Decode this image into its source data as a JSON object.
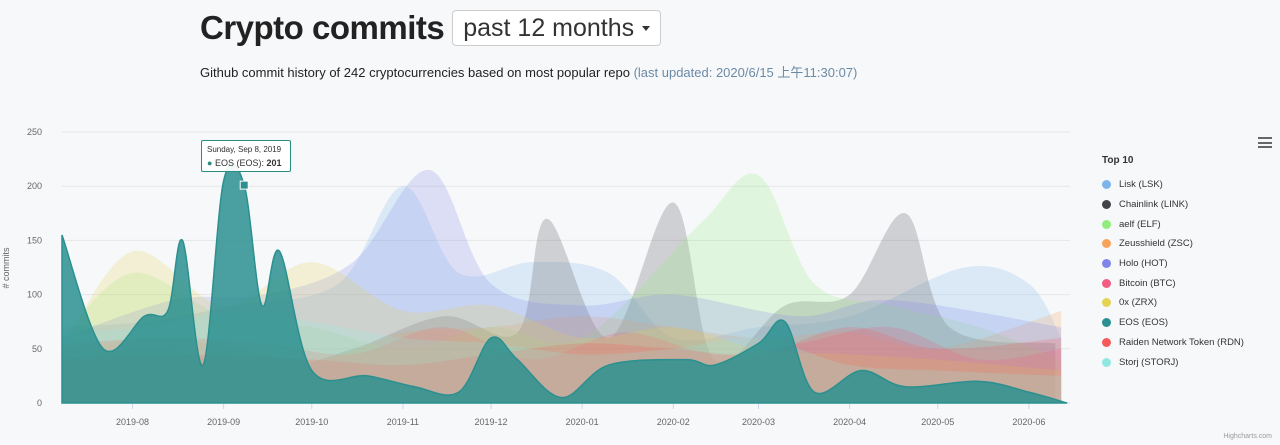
{
  "header": {
    "title": "Crypto commits",
    "range_label": "past 12 months",
    "subtitle_main": "Github commit history of 242 cryptocurrencies based on most popular repo",
    "subtitle_updated": "(last updated: 2020/6/15 上午11:30:07)"
  },
  "tooltip": {
    "date": "Sunday, Sep 8, 2019",
    "series": "EOS (EOS): ",
    "value": "201"
  },
  "credits": "Highcharts.com",
  "chart_data": {
    "type": "area",
    "title": "",
    "ylabel": "# commits",
    "xlabel": "",
    "ylim": [
      0,
      250
    ],
    "yticks": [
      0,
      50,
      100,
      150,
      200,
      250
    ],
    "xlim": [
      "2019-07-08",
      "2020-06-15"
    ],
    "x_ticks": [
      "2019-08",
      "2019-09",
      "2019-10",
      "2019-11",
      "2019-12",
      "2020-01",
      "2020-02",
      "2020-03",
      "2020-04",
      "2020-05",
      "2020-06"
    ],
    "grid": true,
    "legend_title": "Top 10",
    "legend_position": "right",
    "series": [
      {
        "name": "Lisk (LSK)",
        "color": "#7cb5ec",
        "points": [
          [
            "2019-07-08",
            70
          ],
          [
            "2019-08-05",
            75
          ],
          [
            "2019-09-05",
            90
          ],
          [
            "2019-10-10",
            110
          ],
          [
            "2019-11-01",
            200
          ],
          [
            "2019-11-20",
            120
          ],
          [
            "2019-12-15",
            130
          ],
          [
            "2020-01-10",
            120
          ],
          [
            "2020-02-01",
            60
          ],
          [
            "2020-03-01",
            70
          ],
          [
            "2020-04-01",
            80
          ],
          [
            "2020-05-10",
            125
          ],
          [
            "2020-06-01",
            110
          ],
          [
            "2020-06-12",
            60
          ]
        ]
      },
      {
        "name": "Chainlink (LINK)",
        "color": "#434348",
        "points": [
          [
            "2019-07-08",
            40
          ],
          [
            "2019-08-10",
            50
          ],
          [
            "2019-09-15",
            30
          ],
          [
            "2019-10-15",
            50
          ],
          [
            "2019-11-15",
            80
          ],
          [
            "2019-12-10",
            65
          ],
          [
            "2019-12-20",
            170
          ],
          [
            "2020-01-10",
            60
          ],
          [
            "2020-02-01",
            185
          ],
          [
            "2020-02-15",
            40
          ],
          [
            "2020-03-10",
            90
          ],
          [
            "2020-04-01",
            100
          ],
          [
            "2020-04-20",
            175
          ],
          [
            "2020-05-05",
            70
          ],
          [
            "2020-06-10",
            55
          ]
        ]
      },
      {
        "name": "aelf (ELF)",
        "color": "#90ed7d",
        "points": [
          [
            "2019-07-08",
            60
          ],
          [
            "2019-08-01",
            120
          ],
          [
            "2019-09-01",
            80
          ],
          [
            "2019-10-01",
            70
          ],
          [
            "2019-11-01",
            50
          ],
          [
            "2019-12-01",
            70
          ],
          [
            "2020-01-01",
            60
          ],
          [
            "2020-02-10",
            165
          ],
          [
            "2020-03-01",
            210
          ],
          [
            "2020-03-20",
            110
          ],
          [
            "2020-04-15",
            90
          ],
          [
            "2020-05-15",
            70
          ],
          [
            "2020-06-12",
            40
          ]
        ]
      },
      {
        "name": "Zeusshield (ZSC)",
        "color": "#f7a35c",
        "points": [
          [
            "2019-07-08",
            50
          ],
          [
            "2019-08-15",
            60
          ],
          [
            "2019-10-01",
            40
          ],
          [
            "2019-11-01",
            65
          ],
          [
            "2019-12-01",
            70
          ],
          [
            "2020-01-01",
            80
          ],
          [
            "2020-02-01",
            70
          ],
          [
            "2020-03-01",
            60
          ],
          [
            "2020-04-01",
            65
          ],
          [
            "2020-05-01",
            50
          ],
          [
            "2020-06-12",
            85
          ]
        ]
      },
      {
        "name": "Holo (HOT)",
        "color": "#8085e9",
        "points": [
          [
            "2019-07-08",
            60
          ],
          [
            "2019-08-15",
            95
          ],
          [
            "2019-09-15",
            100
          ],
          [
            "2019-10-15",
            130
          ],
          [
            "2019-11-10",
            215
          ],
          [
            "2019-12-01",
            110
          ],
          [
            "2020-01-01",
            90
          ],
          [
            "2020-02-01",
            100
          ],
          [
            "2020-03-15",
            80
          ],
          [
            "2020-04-15",
            95
          ],
          [
            "2020-06-12",
            70
          ]
        ]
      },
      {
        "name": "Bitcoin (BTC)",
        "color": "#f15c80",
        "points": [
          [
            "2019-07-08",
            55
          ],
          [
            "2019-08-15",
            60
          ],
          [
            "2019-09-15",
            55
          ],
          [
            "2019-10-15",
            45
          ],
          [
            "2019-11-15",
            70
          ],
          [
            "2019-12-15",
            40
          ],
          [
            "2020-01-15",
            65
          ],
          [
            "2020-02-15",
            45
          ],
          [
            "2020-03-15",
            55
          ],
          [
            "2020-04-15",
            70
          ],
          [
            "2020-05-15",
            40
          ],
          [
            "2020-06-12",
            50
          ]
        ]
      },
      {
        "name": "0x (ZRX)",
        "color": "#e4d354",
        "points": [
          [
            "2019-07-08",
            50
          ],
          [
            "2019-08-01",
            140
          ],
          [
            "2019-09-01",
            90
          ],
          [
            "2019-10-01",
            130
          ],
          [
            "2019-11-01",
            85
          ],
          [
            "2019-12-01",
            90
          ],
          [
            "2020-01-01",
            60
          ],
          [
            "2020-02-01",
            70
          ],
          [
            "2020-03-01",
            50
          ],
          [
            "2020-04-01",
            45
          ],
          [
            "2020-05-01",
            40
          ],
          [
            "2020-06-12",
            30
          ]
        ]
      },
      {
        "name": "EOS (EOS)",
        "color": "#2b908f",
        "points": [
          [
            "2019-07-08",
            155
          ],
          [
            "2019-07-22",
            50
          ],
          [
            "2019-08-05",
            80
          ],
          [
            "2019-08-13",
            85
          ],
          [
            "2019-08-18",
            150
          ],
          [
            "2019-08-25",
            35
          ],
          [
            "2019-09-01",
            205
          ],
          [
            "2019-09-08",
            201
          ],
          [
            "2019-09-14",
            90
          ],
          [
            "2019-09-20",
            140
          ],
          [
            "2019-10-01",
            30
          ],
          [
            "2019-10-20",
            25
          ],
          [
            "2019-11-05",
            15
          ],
          [
            "2019-11-20",
            10
          ],
          [
            "2019-12-01",
            60
          ],
          [
            "2019-12-10",
            40
          ],
          [
            "2019-12-25",
            5
          ],
          [
            "2020-01-10",
            35
          ],
          [
            "2020-02-05",
            40
          ],
          [
            "2020-02-15",
            35
          ],
          [
            "2020-03-01",
            55
          ],
          [
            "2020-03-10",
            75
          ],
          [
            "2020-03-20",
            10
          ],
          [
            "2020-04-05",
            30
          ],
          [
            "2020-04-20",
            15
          ],
          [
            "2020-05-15",
            20
          ],
          [
            "2020-06-01",
            10
          ],
          [
            "2020-06-14",
            0
          ]
        ]
      },
      {
        "name": "Raiden Network Token (RDN)",
        "color": "#f45b5b",
        "points": [
          [
            "2019-07-08",
            40
          ],
          [
            "2019-08-15",
            45
          ],
          [
            "2019-10-01",
            40
          ],
          [
            "2019-11-01",
            35
          ],
          [
            "2019-12-01",
            45
          ],
          [
            "2020-01-01",
            55
          ],
          [
            "2020-02-01",
            50
          ],
          [
            "2020-03-01",
            45
          ],
          [
            "2020-04-01",
            70
          ],
          [
            "2020-05-01",
            50
          ],
          [
            "2020-06-12",
            60
          ]
        ]
      },
      {
        "name": "Storj (STORJ)",
        "color": "#91e8e1",
        "points": [
          [
            "2019-07-08",
            65
          ],
          [
            "2019-08-05",
            70
          ],
          [
            "2019-09-05",
            85
          ],
          [
            "2019-10-01",
            75
          ],
          [
            "2019-11-01",
            60
          ],
          [
            "2019-12-01",
            55
          ],
          [
            "2020-01-01",
            45
          ],
          [
            "2020-02-01",
            50
          ],
          [
            "2020-03-01",
            60
          ],
          [
            "2020-04-01",
            35
          ],
          [
            "2020-05-01",
            30
          ],
          [
            "2020-06-12",
            25
          ]
        ]
      }
    ],
    "highlight": {
      "series": "EOS (EOS)",
      "x": "2019-09-08",
      "y": 201
    }
  }
}
